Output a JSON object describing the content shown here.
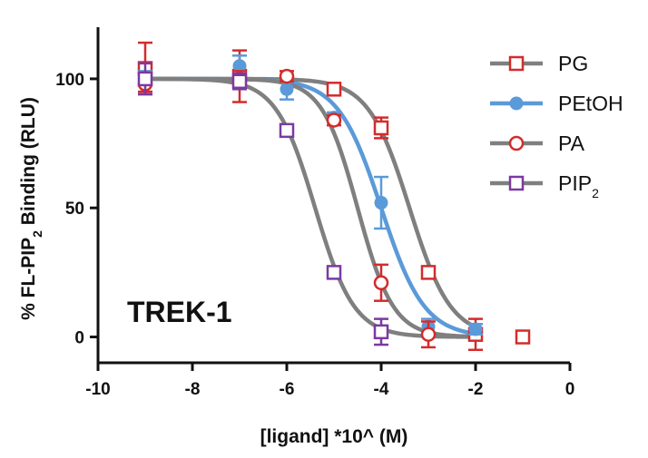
{
  "chart_data": {
    "type": "scatter",
    "annotation": "TREK-1",
    "xlabel": "[ligand] *10^ (M)",
    "ylabel": {
      "before": "% FL-PIP",
      "sub": "2",
      "after": " Binding (RLU)"
    },
    "xlim": [
      -10,
      0
    ],
    "ylim": [
      -10,
      120
    ],
    "x_ticks": [
      -10,
      -8,
      -6,
      -4,
      -2,
      0
    ],
    "y_ticks": [
      0,
      50,
      100
    ],
    "x_tick_labels": [
      "-10",
      "-8",
      "-6",
      "-4",
      "-2",
      "0"
    ],
    "y_tick_labels": [
      "0",
      "50",
      "100"
    ],
    "legend_position": "top-right",
    "series": [
      {
        "name": "PG",
        "name_sub": "",
        "marker": "square-open",
        "color": "#d42b2b",
        "curve_color": "#7f7f7f",
        "ic50_log": -3.4,
        "hill": 1.0,
        "top": 100,
        "bottom": 0,
        "x": [
          -9,
          -7,
          -5,
          -4,
          -3,
          -2,
          -1
        ],
        "y": [
          104,
          101,
          96,
          81,
          25,
          1,
          0
        ],
        "err": [
          10,
          10,
          2,
          4,
          2,
          6,
          0
        ]
      },
      {
        "name": "PEtOH",
        "name_sub": "",
        "marker": "circle-filled",
        "color": "#5b9ad8",
        "curve_color": "#5b9ad8",
        "ic50_log": -4.0,
        "hill": 0.95,
        "top": 100,
        "bottom": 0,
        "x": [
          -9,
          -7,
          -6,
          -5,
          -4,
          -3,
          -2
        ],
        "y": [
          99,
          105,
          96,
          85,
          52,
          4,
          3
        ],
        "err": [
          4,
          4,
          4,
          2,
          10,
          3,
          2
        ]
      },
      {
        "name": "PA",
        "name_sub": "",
        "marker": "circle-open",
        "color": "#d42b2b",
        "curve_color": "#7f7f7f",
        "ic50_log": -4.5,
        "hill": 1.15,
        "top": 100,
        "bottom": 0,
        "x": [
          -9,
          -7,
          -6,
          -5,
          -4,
          -3
        ],
        "y": [
          98,
          100,
          101,
          84,
          21,
          1
        ],
        "err": [
          3,
          3,
          2,
          2,
          7,
          5
        ]
      },
      {
        "name": "PIP",
        "name_sub": "2",
        "marker": "square-open",
        "color": "#7b3aa0",
        "curve_color": "#7f7f7f",
        "ic50_log": -5.4,
        "hill": 1.05,
        "top": 100,
        "bottom": 0,
        "x": [
          -9,
          -7,
          -6,
          -5,
          -4
        ],
        "y": [
          100,
          99,
          80,
          25,
          2
        ],
        "err": [
          6,
          3,
          1,
          1,
          5
        ]
      }
    ]
  }
}
